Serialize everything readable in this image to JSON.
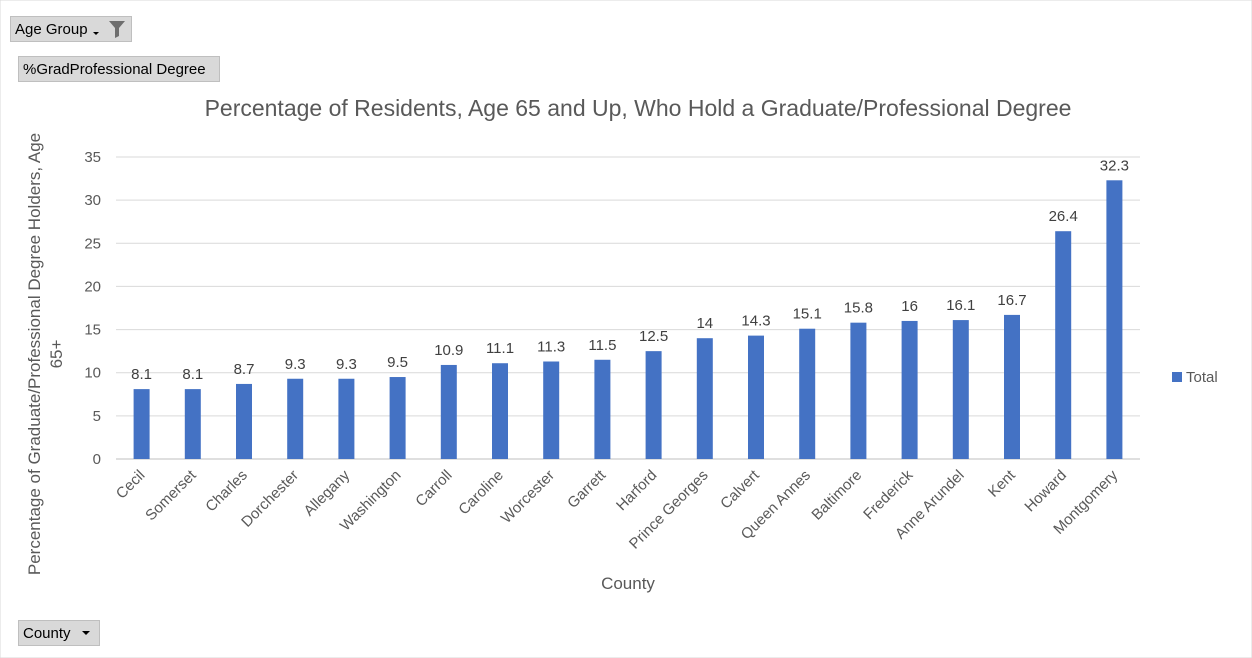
{
  "pivot": {
    "filter_field": "Age Group",
    "value_field": "%GradProfessional Degree",
    "axis_field": "County",
    "icons": {
      "dropdown": "chevron-down-icon",
      "filter": "funnel-icon"
    }
  },
  "chart_data": {
    "type": "bar",
    "title": "Percentage of Residents, Age 65 and Up, Who Hold a Graduate/Professional Degree",
    "xlabel": "County",
    "ylabel_lines": [
      "Percentage of Graduate/Professional Degree Holders, Age",
      "65+"
    ],
    "categories": [
      "Cecil",
      "Somerset",
      "Charles",
      "Dorchester",
      "Allegany",
      "Washington",
      "Carroll",
      "Caroline",
      "Worcester",
      "Garrett",
      "Harford",
      "Prince Georges",
      "Calvert",
      "Queen Annes",
      "Baltimore",
      "Frederick",
      "Anne Arundel",
      "Kent",
      "Howard",
      "Montgomery"
    ],
    "series": [
      {
        "name": "Total",
        "values": [
          8.1,
          8.1,
          8.7,
          9.3,
          9.3,
          9.5,
          10.9,
          11.1,
          11.3,
          11.5,
          12.5,
          14,
          14.3,
          15.1,
          15.8,
          16,
          16.1,
          16.7,
          26.4,
          32.3
        ],
        "color": "#4472c4"
      }
    ],
    "ylim": [
      0,
      35
    ],
    "yticks": [
      0,
      5,
      10,
      15,
      20,
      25,
      30,
      35
    ],
    "grid": true,
    "legend": "right",
    "data_labels": true
  }
}
